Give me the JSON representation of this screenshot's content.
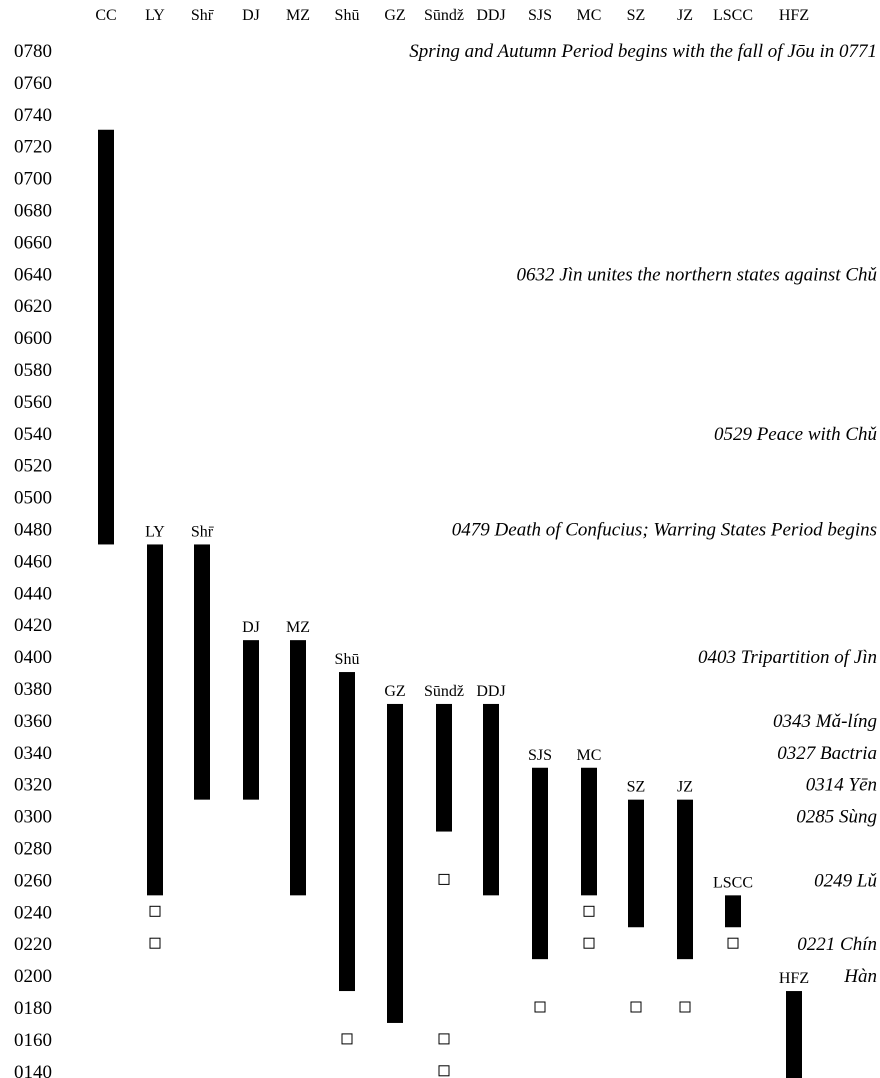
{
  "chart_data": {
    "type": "timeline",
    "title": "",
    "xlabel": "",
    "ylabel": "",
    "y_unit": "year BCE",
    "y_range": [
      780,
      130
    ],
    "y_ticks": [
      "0780",
      "0760",
      "0740",
      "0720",
      "0700",
      "0680",
      "0660",
      "0640",
      "0620",
      "0600",
      "0580",
      "0560",
      "0540",
      "0520",
      "0500",
      "0480",
      "0460",
      "0440",
      "0420",
      "0400",
      "0380",
      "0360",
      "0340",
      "0320",
      "0300",
      "0280",
      "0260",
      "0240",
      "0220",
      "0200",
      "0180",
      "0160",
      "0140"
    ],
    "grid": false,
    "bar_color": "#000000",
    "marker_symbol": "hollow-square",
    "texts": [
      {
        "code": "CC",
        "header": "CC",
        "label": "",
        "start": 730,
        "end": 470,
        "markers": []
      },
      {
        "code": "LY",
        "header": "LY",
        "label": "LY",
        "start": 470,
        "end": 250,
        "markers": [
          240,
          220
        ]
      },
      {
        "code": "Shr",
        "header": "Shr̄",
        "label": "Shr̄",
        "start": 470,
        "end": 310,
        "markers": []
      },
      {
        "code": "DJ",
        "header": "DJ",
        "label": "DJ",
        "start": 410,
        "end": 310,
        "markers": []
      },
      {
        "code": "MZ",
        "header": "MZ",
        "label": "MZ",
        "start": 410,
        "end": 250,
        "markers": []
      },
      {
        "code": "Shu",
        "header": "Shū",
        "label": "Shū",
        "start": 390,
        "end": 190,
        "markers": [
          160
        ]
      },
      {
        "code": "GZ",
        "header": "GZ",
        "label": "GZ",
        "start": 370,
        "end": 170,
        "markers": []
      },
      {
        "code": "Sundz",
        "header": "Sūndž",
        "label": "Sūndž",
        "start": 370,
        "end": 290,
        "markers": [
          260,
          160,
          140
        ]
      },
      {
        "code": "DDJ",
        "header": "DDJ",
        "label": "DDJ",
        "start": 370,
        "end": 250,
        "markers": []
      },
      {
        "code": "SJS",
        "header": "SJS",
        "label": "SJS",
        "start": 330,
        "end": 210,
        "markers": [
          180
        ]
      },
      {
        "code": "MC",
        "header": "MC",
        "label": "MC",
        "start": 330,
        "end": 250,
        "markers": [
          240,
          220
        ]
      },
      {
        "code": "SZ",
        "header": "SZ",
        "label": "SZ",
        "start": 310,
        "end": 230,
        "markers": [
          180
        ]
      },
      {
        "code": "JZ",
        "header": "JZ",
        "label": "JZ",
        "start": 310,
        "end": 210,
        "markers": [
          180
        ]
      },
      {
        "code": "LSCC",
        "header": "LSCC",
        "label": "LSCC",
        "start": 250,
        "end": 230,
        "markers": [
          220
        ]
      },
      {
        "code": "HFZ",
        "header": "HFZ",
        "label": "HFZ",
        "start": 190,
        "end": 130,
        "markers": []
      }
    ],
    "events": [
      {
        "year": 780,
        "text": "Spring and Autumn Period begins with the fall of Jōu in 0771"
      },
      {
        "year": 640,
        "text": "0632  Jìn unites the northern states against Chǔ"
      },
      {
        "year": 540,
        "text": "0529 Peace with Chǔ"
      },
      {
        "year": 480,
        "text": "0479  Death of Confucius; Warring States Period begins"
      },
      {
        "year": 400,
        "text": "0403  Tripartition of Jìn"
      },
      {
        "year": 360,
        "text": "0343 Mǎ-líng"
      },
      {
        "year": 340,
        "text": "0327 Bactria"
      },
      {
        "year": 320,
        "text": "0314 Yēn"
      },
      {
        "year": 300,
        "text": "0285 Sùng"
      },
      {
        "year": 260,
        "text": "0249 Lǔ"
      },
      {
        "year": 220,
        "text": "0221 Chín"
      },
      {
        "year": 200,
        "text": "Hàn"
      }
    ]
  }
}
